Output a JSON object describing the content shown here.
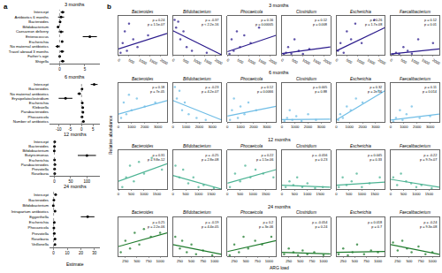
{
  "chart_data": [
    {
      "type": "forest",
      "panel": "a",
      "title": "3 months",
      "color": "#000000",
      "ref_x": 0,
      "categories": [
        "Intercept",
        "Antibiotics 6 months",
        "Bacteroides",
        "Bifidobacterium",
        "Caesarean delivery",
        "Enterococcus",
        "Escherichia",
        "No maternal antibiotics",
        "Travel abroad 3 months",
        "Father's age",
        "Shigella"
      ],
      "values": [
        0.6,
        0.3,
        0.1,
        -0.3,
        0.3,
        6.0,
        0.5,
        -0.4,
        0.5,
        0.02,
        0.6
      ],
      "ci_low": [
        0.2,
        -0.3,
        0.0,
        -0.4,
        -0.2,
        4.6,
        0.3,
        -0.8,
        0.1,
        0.0,
        0.2
      ],
      "ci_high": [
        1.0,
        0.9,
        0.2,
        -0.2,
        0.8,
        7.4,
        0.7,
        0.0,
        0.9,
        0.04,
        1.0
      ],
      "xlim": [
        -2,
        8
      ],
      "xticks": [
        0,
        5
      ]
    },
    {
      "type": "forest",
      "title": "6 months",
      "color": "#000000",
      "ref_x": 0,
      "categories": [
        "Intercept",
        "Bacteroides",
        "No maternal antibiotics",
        "Erysipelatoclostridium",
        "Escherichia",
        "Klebsiella",
        "Parabacteroides",
        "Phocaeicola",
        "Number of antibiotics"
      ],
      "values": [
        5.5,
        0.2,
        -1.0,
        -7.0,
        0.3,
        0.5,
        0.6,
        0.2,
        0.8
      ],
      "ci_low": [
        4.0,
        0.0,
        -1.8,
        -10.0,
        0.1,
        0.1,
        0.2,
        0.0,
        0.3
      ],
      "ci_high": [
        7.0,
        0.4,
        -0.2,
        -4.0,
        0.5,
        0.9,
        1.0,
        0.4,
        1.3
      ],
      "xlim": [
        -14,
        8
      ],
      "xticks": [
        -10,
        -5,
        0,
        5
      ]
    },
    {
      "type": "forest",
      "title": "12 months",
      "color": "#000000",
      "ref_x": 0,
      "categories": [
        "Intercept",
        "Bacteroides",
        "Bifidobacterium",
        "Butyricimonas",
        "Escherichia",
        "Parabacteroides",
        "Prevotella",
        "Roseburia"
      ],
      "values": [
        1.0,
        0.2,
        -0.3,
        100,
        0.5,
        1.5,
        0.5,
        1.0
      ],
      "ci_low": [
        -1.0,
        0.0,
        -0.6,
        72,
        0.2,
        0.0,
        -0.5,
        -0.5
      ],
      "ci_high": [
        3.0,
        0.4,
        0.0,
        128,
        0.8,
        3.0,
        1.5,
        2.5
      ],
      "xlim": [
        -15,
        140
      ],
      "xticks": [
        0,
        50,
        100
      ]
    },
    {
      "type": "forest",
      "title": "24 months",
      "color": "#000000",
      "ref_x": 0,
      "xlabel": "Estimate",
      "categories": [
        "Intercept",
        "Bacteroides",
        "Bifidobacterium",
        "Intrapartum antibiotics",
        "Eggerthella",
        "Escherichia",
        "Phocaeicola",
        "Prevotella",
        "Roseburia",
        "Veillonella"
      ],
      "values": [
        1.5,
        0.2,
        -0.2,
        1.0,
        25.0,
        0.5,
        0.2,
        0.5,
        1.0,
        1.0
      ],
      "ci_low": [
        0.8,
        0.0,
        -0.4,
        0.2,
        20.0,
        0.2,
        0.0,
        -0.3,
        0.2,
        0.5
      ],
      "ci_high": [
        2.2,
        0.4,
        0.0,
        1.8,
        30.0,
        0.8,
        0.4,
        1.3,
        1.8,
        1.5
      ],
      "xlim": [
        -3,
        34
      ],
      "xticks": [
        0,
        10,
        20,
        30
      ]
    },
    {
      "type": "scatter",
      "panel": "b",
      "title": "3 months",
      "color": "#2b1b8c",
      "ylabel": "Relative abundance",
      "tick_labels": "x",
      "xlim": [
        0,
        2300
      ],
      "xticks": [
        0,
        500,
        1000,
        1500,
        2000
      ],
      "ylim": [
        0,
        1
      ],
      "fit_x": [
        0,
        2300
      ],
      "panels": [
        {
          "name": "Bacteroides",
          "x": [
            100,
            200,
            300,
            400,
            500,
            700,
            900,
            1400
          ],
          "values": [
            0.05,
            0.3,
            0.6,
            0.1,
            0.8,
            0.4,
            0.2,
            0.5
          ],
          "fit_y": [
            0.15,
            0.55
          ],
          "annotations": [
            "ρ = 0.24",
            "p = 1.5e-07"
          ]
        },
        {
          "name": "Bifidobacterium",
          "x": [
            80,
            150,
            250,
            350,
            500,
            650,
            900,
            1600
          ],
          "values": [
            0.9,
            0.7,
            0.85,
            0.4,
            0.6,
            0.2,
            0.1,
            0.05
          ],
          "fit_y": [
            0.62,
            0.0
          ],
          "annotations": [
            "ρ = -0.37",
            "p < 2.2e-16"
          ]
        },
        {
          "name": "Phocaeicola",
          "x": [
            100,
            200,
            300,
            450,
            600,
            800,
            1100,
            1500
          ],
          "values": [
            0.02,
            0.4,
            0.1,
            0.6,
            0.2,
            0.5,
            0.3,
            0.7
          ],
          "fit_y": [
            0.08,
            0.5
          ],
          "annotations": [
            "ρ = 0.16",
            "p = 0.00005"
          ]
        },
        {
          "name": "Clostridium",
          "x": [
            100,
            200,
            300,
            450,
            600,
            800,
            1000,
            1300
          ],
          "values": [
            0.01,
            0.05,
            0.2,
            0.03,
            0.4,
            0.1,
            0.02,
            0.15
          ],
          "fit_y": [
            0.03,
            0.2
          ],
          "annotations": [
            "ρ = 0.12",
            "p = 0.008"
          ]
        },
        {
          "name": "Escherichia",
          "x": [
            80,
            200,
            350,
            500,
            700,
            900,
            1200,
            1800
          ],
          "values": [
            0.1,
            0.3,
            0.05,
            0.6,
            0.4,
            0.8,
            0.3,
            0.9
          ],
          "fit_y": [
            0.1,
            0.7
          ],
          "annotations": [
            "ρ = 0.26",
            "p = 1.7e-08"
          ]
        },
        {
          "name": "Faecalibacterium",
          "x": [
            100,
            250,
            400,
            600,
            800,
            1000,
            1300,
            2000
          ],
          "values": [
            0.01,
            0.05,
            0.02,
            0.2,
            0.1,
            0.03,
            0.4,
            0.3
          ],
          "fit_y": [
            0.02,
            0.15
          ],
          "annotations": [
            "ρ = 0.12",
            "p = 0.01"
          ]
        }
      ]
    },
    {
      "type": "scatter",
      "title": "6 months",
      "color": "#6fbde6",
      "tick_labels": "x",
      "xlim": [
        0,
        3700
      ],
      "xticks": [
        0,
        1000,
        2000,
        3000
      ],
      "ylim": [
        0,
        1
      ],
      "fit_x": [
        0,
        3700
      ],
      "panels": [
        {
          "name": "Bacteroides",
          "x": [
            200,
            400,
            600,
            800,
            1000,
            1400,
            2000,
            2800
          ],
          "values": [
            0.1,
            0.5,
            0.2,
            0.7,
            0.3,
            0.6,
            0.4,
            0.5
          ],
          "fit_y": [
            0.2,
            0.55
          ],
          "annotations": [
            "ρ = 0.18",
            "p = 7e-05"
          ]
        },
        {
          "name": "Bifidobacterium",
          "x": [
            150,
            300,
            500,
            700,
            900,
            1200,
            1800,
            2500
          ],
          "values": [
            0.9,
            0.6,
            0.8,
            0.3,
            0.5,
            0.2,
            0.1,
            0.05
          ],
          "fit_y": [
            0.55,
            0.05
          ],
          "annotations": [
            "ρ = -0.23",
            "p = 4.2e-07"
          ]
        },
        {
          "name": "Phocaeicola",
          "x": [
            200,
            350,
            500,
            800,
            1000,
            1300,
            1600,
            2200
          ],
          "values": [
            0.05,
            0.3,
            0.6,
            0.1,
            0.4,
            0.2,
            0.5,
            0.3
          ],
          "fit_y": [
            0.15,
            0.4
          ],
          "annotations": [
            "ρ = 0.12",
            "p = 0.0066"
          ]
        },
        {
          "name": "Clostridium",
          "x": [
            200,
            400,
            600,
            800,
            1100,
            1500,
            2000,
            2600
          ],
          "values": [
            0.02,
            0.1,
            0.3,
            0.05,
            0.15,
            0.02,
            0.2,
            0.05
          ],
          "fit_y": [
            0.06,
            0.07
          ],
          "annotations": [
            "ρ = 0.005",
            "p = 0.88"
          ]
        },
        {
          "name": "Escherichia",
          "x": [
            150,
            300,
            500,
            800,
            1100,
            1500,
            2000,
            3200
          ],
          "values": [
            0.05,
            0.2,
            0.1,
            0.4,
            0.3,
            0.6,
            0.5,
            0.8
          ],
          "fit_y": [
            0.05,
            0.8
          ],
          "annotations": [
            "ρ = 0.32",
            "p = 2e-16"
          ]
        },
        {
          "name": "Faecalibacterium",
          "x": [
            200,
            400,
            700,
            900,
            1200,
            1600,
            2200,
            3000
          ],
          "values": [
            0.01,
            0.1,
            0.3,
            0.05,
            0.2,
            0.4,
            0.1,
            0.15
          ],
          "fit_y": [
            0.05,
            0.2
          ],
          "annotations": [
            "ρ = 0.11",
            "p = 0.014"
          ]
        }
      ]
    },
    {
      "type": "scatter",
      "title": "12 months",
      "color": "#4bb393",
      "tick_labels": "x",
      "xlim": [
        0,
        1900
      ],
      "xticks": [
        0,
        500,
        1000,
        1500
      ],
      "ylim": [
        0,
        1
      ],
      "fit_x": [
        0,
        1900
      ],
      "panels": [
        {
          "name": "Bacteroides",
          "x": [
            150,
            300,
            450,
            600,
            800,
            1000,
            1300,
            1700
          ],
          "values": [
            0.05,
            0.3,
            0.6,
            0.2,
            0.7,
            0.4,
            0.8,
            0.5
          ],
          "fit_y": [
            0.2,
            0.65
          ],
          "annotations": [
            "ρ = 0.31",
            "p = 9.8e-12"
          ]
        },
        {
          "name": "Bifidobacterium",
          "x": [
            100,
            250,
            400,
            600,
            800,
            1000,
            1200,
            1600
          ],
          "values": [
            0.6,
            0.3,
            0.5,
            0.15,
            0.3,
            0.05,
            0.1,
            0.02
          ],
          "fit_y": [
            0.35,
            0.0
          ],
          "annotations": [
            "ρ = -0.25",
            "p = 2.8e-08"
          ]
        },
        {
          "name": "Phocaeicola",
          "x": [
            100,
            300,
            500,
            700,
            900,
            1100,
            1400,
            1800
          ],
          "values": [
            0.05,
            0.4,
            0.2,
            0.6,
            0.3,
            0.5,
            0.4,
            0.3
          ],
          "fit_y": [
            0.15,
            0.5
          ],
          "annotations": [
            "ρ = 0.22",
            "p = 1.5e-06"
          ]
        },
        {
          "name": "Clostridium",
          "x": [
            150,
            300,
            450,
            600,
            800,
            1000,
            1300,
            1600
          ],
          "values": [
            0.05,
            0.2,
            0.1,
            0.3,
            0.05,
            0.15,
            0.02,
            0.05
          ],
          "fit_y": [
            0.1,
            0.05
          ],
          "annotations": [
            "ρ = -0.056",
            "p = 0.23"
          ]
        },
        {
          "name": "Escherichia",
          "x": [
            100,
            250,
            400,
            600,
            800,
            1000,
            1300,
            1700
          ],
          "values": [
            0.05,
            0.3,
            0.1,
            0.2,
            0.4,
            0.05,
            0.15,
            0.3
          ],
          "fit_y": [
            0.1,
            0.18
          ],
          "annotations": [
            "ρ = 0.045",
            "p = 0.33"
          ]
        },
        {
          "name": "Faecalibacterium",
          "x": [
            100,
            250,
            400,
            600,
            800,
            1000,
            1200,
            1600
          ],
          "values": [
            0.3,
            0.1,
            0.4,
            0.2,
            0.15,
            0.05,
            0.1,
            0.02
          ],
          "fit_y": [
            0.25,
            0.05
          ],
          "annotations": [
            "ρ = -0.22",
            "p = 9.7e-07"
          ]
        }
      ]
    },
    {
      "type": "scatter",
      "title": "24 months",
      "color": "#1e7b2c",
      "tick_labels": "x",
      "xlabel": "ARG load",
      "xlim": [
        100,
        1150
      ],
      "xticks": [
        250,
        500,
        750,
        1000
      ],
      "ylim": [
        0,
        1
      ],
      "fit_x": [
        100,
        1150
      ],
      "panels": [
        {
          "name": "Bacteroides",
          "x": [
            150,
            250,
            350,
            450,
            550,
            650,
            800,
            1000
          ],
          "values": [
            0.1,
            0.4,
            0.2,
            0.6,
            0.3,
            0.7,
            0.5,
            0.6
          ],
          "fit_y": [
            0.25,
            0.6
          ],
          "annotations": [
            "ρ = 0.25",
            "p = 2.2e-06"
          ]
        },
        {
          "name": "Bifidobacterium",
          "x": [
            150,
            250,
            300,
            400,
            500,
            600,
            750,
            950
          ],
          "values": [
            0.5,
            0.2,
            0.4,
            0.1,
            0.3,
            0.05,
            0.15,
            0.02
          ],
          "fit_y": [
            0.3,
            0.05
          ],
          "annotations": [
            "ρ = -0.19",
            "p = 4.4e-05"
          ]
        },
        {
          "name": "Phocaeicola",
          "x": [
            150,
            250,
            350,
            450,
            550,
            700,
            850,
            1050
          ],
          "values": [
            0.02,
            0.3,
            0.1,
            0.5,
            0.2,
            0.4,
            0.3,
            0.5
          ],
          "fit_y": [
            0.12,
            0.4
          ],
          "annotations": [
            "ρ = 0.2",
            "p = 3e-06"
          ]
        },
        {
          "name": "Clostridium",
          "x": [
            150,
            250,
            350,
            450,
            550,
            650,
            800,
            1000
          ],
          "values": [
            0.05,
            0.2,
            0.1,
            0.02,
            0.15,
            0.05,
            0.1,
            0.03
          ],
          "fit_y": [
            0.1,
            0.06
          ],
          "annotations": [
            "ρ = -0.054",
            "p = 0.24"
          ]
        },
        {
          "name": "Escherichia",
          "x": [
            150,
            250,
            350,
            450,
            550,
            700,
            850,
            1000
          ],
          "values": [
            0.05,
            0.2,
            0.02,
            0.1,
            0.3,
            0.05,
            0.15,
            0.1
          ],
          "fit_y": [
            0.1,
            0.12
          ],
          "annotations": [
            "ρ = 0.018",
            "p = 0.7"
          ]
        },
        {
          "name": "Faecalibacterium",
          "x": [
            150,
            250,
            350,
            450,
            550,
            700,
            850,
            1000
          ],
          "values": [
            0.35,
            0.15,
            0.4,
            0.2,
            0.1,
            0.25,
            0.05,
            0.1
          ],
          "fit_y": [
            0.3,
            0.05
          ],
          "annotations": [
            "ρ = -0.24",
            "p = 9.3e-08"
          ]
        }
      ]
    }
  ]
}
